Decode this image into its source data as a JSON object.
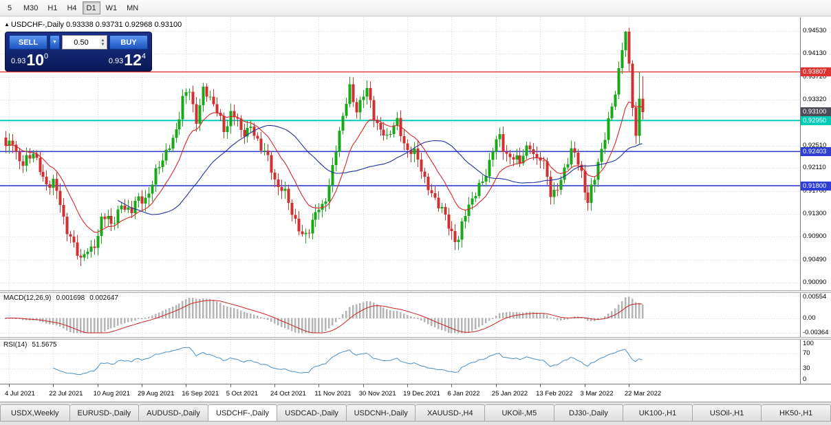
{
  "toolbar": {
    "timeframes": [
      {
        "label": "5",
        "active": false
      },
      {
        "label": "M30",
        "active": false
      },
      {
        "label": "H1",
        "active": false
      },
      {
        "label": "H4",
        "active": false
      },
      {
        "label": "D1",
        "active": true
      },
      {
        "label": "W1",
        "active": false
      },
      {
        "label": "MN",
        "active": false
      }
    ]
  },
  "chart_header": {
    "marker": "▲",
    "symbol": "USDCHF-,Daily",
    "ohlc": "0.93338 0.93731 0.92968 0.93100"
  },
  "trade": {
    "sell_label": "SELL",
    "buy_label": "BUY",
    "volume": "0.50",
    "bid_small": "0.93",
    "bid_big": "10",
    "bid_sup": "0",
    "ask_small": "0.93",
    "ask_big": "12",
    "ask_sup": "4"
  },
  "indicators": {
    "macd": {
      "title": "MACD(12,26,9)",
      "value1": "0.001698",
      "value2": "0.002647",
      "axis": [
        "0.00554",
        "0.00",
        "-0.00364"
      ]
    },
    "rsi": {
      "title": "RSI(14)",
      "value": "51.5675",
      "axis": [
        "100",
        "70",
        "30",
        "0"
      ]
    }
  },
  "tabs": {
    "active_index": 3,
    "items": [
      "USDX,Weekly",
      "EURUSD-,Daily",
      "AUDUSD-,Daily",
      "USDCHF-,Daily",
      "USDCAD-,Daily",
      "USDCNH-,Daily",
      "XAUUSD-,H4",
      "UKOil-,M5",
      "DJ30-,Daily",
      "UK100-,H1",
      "USOil-,H1",
      "HK50-,H1"
    ]
  },
  "chart_data": {
    "type": "candlestick",
    "symbol": "USDCHF",
    "timeframe": "Daily",
    "n_candles": 188,
    "last_ohlc": {
      "open": 0.93338,
      "high": 0.93731,
      "low": 0.92968,
      "close": 0.931
    },
    "price_axis": {
      "max": 0.9453,
      "min": 0.9009,
      "labels": [
        "0.94530",
        "0.94130",
        "0.93720",
        "0.93320",
        "0.92920",
        "0.92510",
        "0.92110",
        "0.91700",
        "0.91300",
        "0.90900",
        "0.90490",
        "0.90090"
      ]
    },
    "hlines": [
      {
        "price": 0.93807,
        "label": "0.93807",
        "color": "#dd3333",
        "width": 1.4
      },
      {
        "price": 0.9295,
        "label": "0.92950",
        "color": "#00ccb8",
        "width": 2
      },
      {
        "price": 0.92403,
        "label": "0.92403",
        "color": "#2f3fd3",
        "width": 1.6
      },
      {
        "price": 0.918,
        "label": "0.91800",
        "color": "#2f3fd3",
        "width": 1.6
      }
    ],
    "current_price": {
      "price": 0.931,
      "label": "0.93100",
      "color": "#4d4d5a"
    },
    "date_labels": [
      {
        "text": "4 Jul 2021",
        "index": 1
      },
      {
        "text": "22 Jul 2021",
        "index": 14
      },
      {
        "text": "10 Aug 2021",
        "index": 27
      },
      {
        "text": "29 Aug 2021",
        "index": 40
      },
      {
        "text": "16 Sep 2021",
        "index": 53
      },
      {
        "text": "5 Oct 2021",
        "index": 66
      },
      {
        "text": "24 Oct 2021",
        "index": 79
      },
      {
        "text": "11 Nov 2021",
        "index": 92
      },
      {
        "text": "30 Nov 2021",
        "index": 105
      },
      {
        "text": "19 Dec 2021",
        "index": 118
      },
      {
        "text": "6 Jan 2022",
        "index": 131
      },
      {
        "text": "25 Jan 2022",
        "index": 144
      },
      {
        "text": "13 Feb 2022",
        "index": 157
      },
      {
        "text": "3 Mar 2022",
        "index": 170
      },
      {
        "text": "22 Mar 2022",
        "index": 183
      }
    ],
    "price_anchors": [
      [
        0,
        0.9235
      ],
      [
        2,
        0.9262
      ],
      [
        5,
        0.9218
      ],
      [
        8,
        0.9232
      ],
      [
        11,
        0.92
      ],
      [
        14,
        0.9178
      ],
      [
        17,
        0.9125
      ],
      [
        20,
        0.9078
      ],
      [
        22,
        0.9045
      ],
      [
        25,
        0.9068
      ],
      [
        28,
        0.9122
      ],
      [
        31,
        0.9108
      ],
      [
        34,
        0.9152
      ],
      [
        37,
        0.9132
      ],
      [
        40,
        0.9158
      ],
      [
        43,
        0.9185
      ],
      [
        46,
        0.9222
      ],
      [
        49,
        0.9268
      ],
      [
        52,
        0.9325
      ],
      [
        54,
        0.9342
      ],
      [
        56,
        0.9305
      ],
      [
        58,
        0.935
      ],
      [
        61,
        0.9318
      ],
      [
        64,
        0.9288
      ],
      [
        66,
        0.9308
      ],
      [
        69,
        0.9272
      ],
      [
        72,
        0.929
      ],
      [
        75,
        0.9242
      ],
      [
        78,
        0.9212
      ],
      [
        81,
        0.9175
      ],
      [
        84,
        0.9128
      ],
      [
        87,
        0.9098
      ],
      [
        90,
        0.9108
      ],
      [
        93,
        0.9148
      ],
      [
        96,
        0.921
      ],
      [
        99,
        0.9298
      ],
      [
        101,
        0.9355
      ],
      [
        103,
        0.9322
      ],
      [
        106,
        0.9338
      ],
      [
        109,
        0.9295
      ],
      [
        112,
        0.9262
      ],
      [
        115,
        0.9288
      ],
      [
        118,
        0.9252
      ],
      [
        121,
        0.9218
      ],
      [
        124,
        0.9182
      ],
      [
        127,
        0.9148
      ],
      [
        130,
        0.9102
      ],
      [
        133,
        0.9095
      ],
      [
        136,
        0.9138
      ],
      [
        139,
        0.9182
      ],
      [
        142,
        0.9222
      ],
      [
        145,
        0.9262
      ],
      [
        148,
        0.9235
      ],
      [
        151,
        0.9218
      ],
      [
        154,
        0.9252
      ],
      [
        157,
        0.923
      ],
      [
        160,
        0.9162
      ],
      [
        163,
        0.9195
      ],
      [
        166,
        0.9238
      ],
      [
        169,
        0.9205
      ],
      [
        171,
        0.9162
      ],
      [
        173,
        0.9185
      ],
      [
        175,
        0.924
      ],
      [
        177,
        0.9298
      ],
      [
        179,
        0.9352
      ],
      [
        181,
        0.9415
      ],
      [
        182,
        0.944
      ],
      [
        183,
        0.9385
      ],
      [
        184,
        0.933
      ],
      [
        185,
        0.9268
      ],
      [
        186,
        0.93338
      ],
      [
        187,
        0.931
      ]
    ],
    "high_overrides": {
      "182": 0.9453,
      "186": 0.9381
    },
    "low_overrides": {
      "22": 0.9038,
      "88": 0.9078,
      "131": 0.9085
    },
    "ma": {
      "fast_period": 13,
      "slow_period": 34
    },
    "macd": {
      "fast": 12,
      "slow": 26,
      "signal": 9,
      "scale_max": 0.00554,
      "scale_min": -0.00364
    },
    "rsi": {
      "period": 14,
      "levels": [
        70,
        30
      ]
    }
  },
  "colors": {
    "up": "#18a818",
    "down": "#cf3030",
    "ma_fast": "#d92525",
    "ma_slow": "#20309c",
    "macd_hist": "#bbbbbb",
    "macd_signal": "#cc2222",
    "rsi_line": "#4a8fc7",
    "grid": "#dadada"
  }
}
